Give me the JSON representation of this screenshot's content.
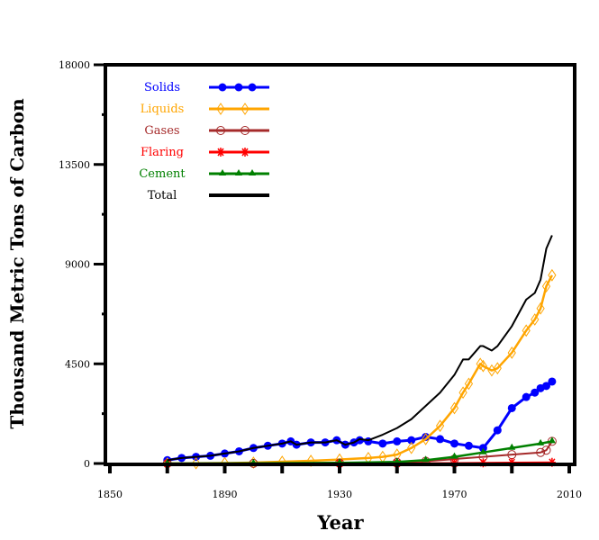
{
  "chart_data": {
    "type": "line",
    "title": "",
    "xlabel": "Year",
    "ylabel": "Thousand Metric Tons of Carbon",
    "xlim": [
      1850,
      2010
    ],
    "ylim": [
      0,
      18000
    ],
    "x_ticks": [
      1850,
      1890,
      1930,
      1970,
      2010
    ],
    "x_tick_labels": [
      "1850",
      "1890",
      "1930",
      "1970",
      "2010"
    ],
    "y_ticks": [
      0,
      4500,
      9000,
      13500,
      18000
    ],
    "y_tick_labels": [
      "0",
      "4500",
      "9000",
      "13500",
      "18000"
    ],
    "legend_position": "top-left",
    "grid": false,
    "series": [
      {
        "name": "Solids",
        "color": "#0000ff",
        "marker": "filled-circle",
        "x": [
          1870,
          1875,
          1880,
          1885,
          1890,
          1895,
          1900,
          1905,
          1910,
          1913,
          1915,
          1920,
          1925,
          1929,
          1932,
          1935,
          1937,
          1940,
          1945,
          1950,
          1955,
          1960,
          1965,
          1970,
          1975,
          1980,
          1985,
          1990,
          1995,
          1998,
          2000,
          2002,
          2004
        ],
        "y": [
          150,
          250,
          300,
          350,
          450,
          550,
          700,
          800,
          900,
          1000,
          850,
          950,
          950,
          1050,
          850,
          950,
          1050,
          1000,
          900,
          1000,
          1050,
          1200,
          1100,
          900,
          800,
          700,
          1500,
          2500,
          3000,
          3200,
          3400,
          3500,
          3700
        ]
      },
      {
        "name": "Liquids",
        "color": "#ffa500",
        "marker": "open-diamond",
        "x": [
          1870,
          1880,
          1890,
          1900,
          1910,
          1920,
          1930,
          1940,
          1945,
          1950,
          1955,
          1960,
          1965,
          1970,
          1973,
          1975,
          1979,
          1980,
          1983,
          1985,
          1990,
          1995,
          1998,
          2000,
          2002,
          2004
        ],
        "y": [
          0,
          10,
          20,
          40,
          80,
          120,
          180,
          250,
          300,
          400,
          700,
          1100,
          1700,
          2500,
          3200,
          3600,
          4500,
          4400,
          4200,
          4300,
          5000,
          6000,
          6500,
          7000,
          8000,
          8500
        ]
      },
      {
        "name": "Gases",
        "color": "#a52a2a",
        "marker": "open-circle",
        "x": [
          1870,
          1900,
          1930,
          1950,
          1960,
          1970,
          1980,
          1990,
          2000,
          2002,
          2004
        ],
        "y": [
          0,
          5,
          20,
          50,
          100,
          200,
          300,
          400,
          500,
          600,
          1000
        ]
      },
      {
        "name": "Flaring",
        "color": "#ff0000",
        "marker": "asterisk",
        "x": [
          1870,
          1930,
          1950,
          1970,
          1980,
          1990,
          2004
        ],
        "y": [
          0,
          5,
          10,
          20,
          30,
          40,
          50
        ]
      },
      {
        "name": "Cement",
        "color": "#008000",
        "marker": "filled-triangle",
        "x": [
          1870,
          1900,
          1930,
          1950,
          1960,
          1970,
          1980,
          1990,
          2000,
          2004
        ],
        "y": [
          0,
          10,
          30,
          70,
          150,
          300,
          500,
          700,
          900,
          1000
        ]
      },
      {
        "name": "Total",
        "color": "#000000",
        "marker": "none",
        "x": [
          1870,
          1875,
          1880,
          1885,
          1890,
          1895,
          1900,
          1905,
          1910,
          1913,
          1915,
          1920,
          1925,
          1929,
          1932,
          1935,
          1937,
          1940,
          1945,
          1950,
          1955,
          1960,
          1965,
          1970,
          1973,
          1975,
          1979,
          1980,
          1983,
          1985,
          1990,
          1995,
          1998,
          2000,
          2002,
          2004
        ],
        "y": [
          150,
          250,
          300,
          350,
          450,
          550,
          700,
          800,
          900,
          1000,
          850,
          950,
          950,
          1050,
          850,
          950,
          1100,
          1050,
          1300,
          1600,
          2000,
          2600,
          3200,
          4000,
          4700,
          4700,
          5300,
          5300,
          5100,
          5300,
          6200,
          7400,
          7700,
          8300,
          9700,
          10300
        ]
      }
    ]
  },
  "legend": [
    {
      "label": "Solids",
      "color": "#0000ff"
    },
    {
      "label": "Liquids",
      "color": "#ffa500"
    },
    {
      "label": "Gases",
      "color": "#a52a2a"
    },
    {
      "label": "Flaring",
      "color": "#ff0000"
    },
    {
      "label": "Cement",
      "color": "#008000"
    },
    {
      "label": "Total",
      "color": "#000000"
    }
  ]
}
